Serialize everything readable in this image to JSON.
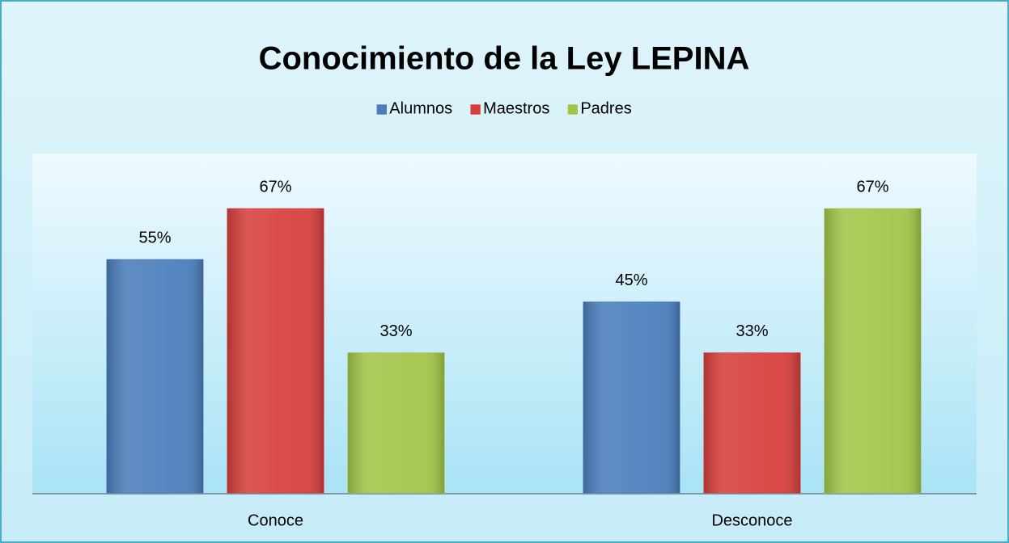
{
  "chart_data": {
    "type": "bar",
    "title": "Conocimiento de la Ley LEPINA",
    "categories": [
      "Conoce",
      "Desconoce"
    ],
    "series": [
      {
        "name": "Alumnos",
        "color": "#4a7ebb",
        "values": [
          55,
          45
        ],
        "value_labels": [
          "55%",
          "45%"
        ]
      },
      {
        "name": "Maestros",
        "color": "#d63f3d",
        "values": [
          67,
          33
        ],
        "value_labels": [
          "67%",
          "33%"
        ]
      },
      {
        "name": "Padres",
        "color": "#a2c549",
        "values": [
          33,
          67
        ],
        "value_labels": [
          "33%",
          "67%"
        ]
      }
    ],
    "ylim": [
      0,
      80
    ],
    "legend": "top",
    "grid": false
  }
}
